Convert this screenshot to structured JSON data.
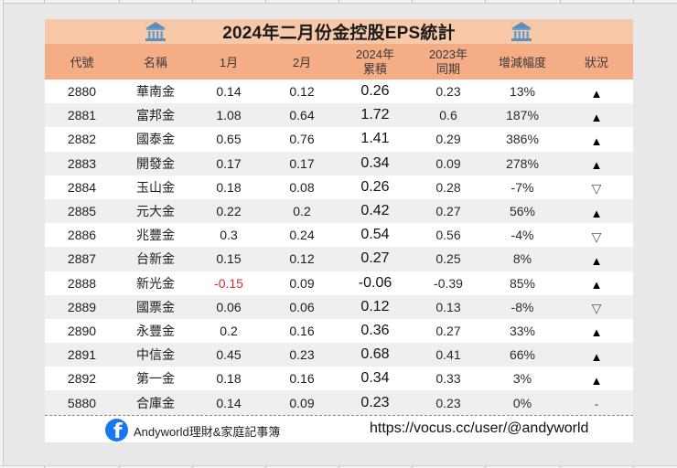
{
  "title": "2024年二月份金控股EPS統計",
  "icons": {
    "title_left": "bank-building-icon",
    "title_right": "bank-building-icon",
    "footer": "facebook-icon"
  },
  "colors": {
    "title_bg": "#f8c9a8",
    "header_bg": "#f4ad84",
    "negative": "#d0312d",
    "facebook": "#1877f2"
  },
  "columns": {
    "code": "代號",
    "name": "名稱",
    "jan": "1月",
    "feb": "2月",
    "cum2024_l1": "2024年",
    "cum2024_l2": "累積",
    "same2023_l1": "2023年",
    "same2023_l2": "同期",
    "change": "增減幅度",
    "status": "狀況"
  },
  "rows": [
    {
      "code": "2880",
      "name": "華南金",
      "jan": "0.14",
      "feb": "0.12",
      "cum2024": "0.26",
      "same2023": "0.23",
      "change": "13%",
      "status": "▲"
    },
    {
      "code": "2881",
      "name": "富邦金",
      "jan": "1.08",
      "feb": "0.64",
      "cum2024": "1.72",
      "same2023": "0.6",
      "change": "187%",
      "status": "▲"
    },
    {
      "code": "2882",
      "name": "國泰金",
      "jan": "0.65",
      "feb": "0.76",
      "cum2024": "1.41",
      "same2023": "0.29",
      "change": "386%",
      "status": "▲"
    },
    {
      "code": "2883",
      "name": "開發金",
      "jan": "0.17",
      "feb": "0.17",
      "cum2024": "0.34",
      "same2023": "0.09",
      "change": "278%",
      "status": "▲"
    },
    {
      "code": "2884",
      "name": "玉山金",
      "jan": "0.18",
      "feb": "0.08",
      "cum2024": "0.26",
      "same2023": "0.28",
      "change": "-7%",
      "status": "▽"
    },
    {
      "code": "2885",
      "name": "元大金",
      "jan": "0.22",
      "feb": "0.2",
      "cum2024": "0.42",
      "same2023": "0.27",
      "change": "56%",
      "status": "▲"
    },
    {
      "code": "2886",
      "name": "兆豐金",
      "jan": "0.3",
      "feb": "0.24",
      "cum2024": "0.54",
      "same2023": "0.56",
      "change": "-4%",
      "status": "▽"
    },
    {
      "code": "2887",
      "name": "台新金",
      "jan": "0.15",
      "feb": "0.12",
      "cum2024": "0.27",
      "same2023": "0.25",
      "change": "8%",
      "status": "▲"
    },
    {
      "code": "2888",
      "name": "新光金",
      "jan": "-0.15",
      "feb": "0.09",
      "cum2024": "-0.06",
      "same2023": "-0.39",
      "change": "85%",
      "status": "▲"
    },
    {
      "code": "2889",
      "name": "國票金",
      "jan": "0.06",
      "feb": "0.06",
      "cum2024": "0.12",
      "same2023": "0.13",
      "change": "-8%",
      "status": "▽"
    },
    {
      "code": "2890",
      "name": "永豐金",
      "jan": "0.2",
      "feb": "0.16",
      "cum2024": "0.36",
      "same2023": "0.27",
      "change": "33%",
      "status": "▲"
    },
    {
      "code": "2891",
      "name": "中信金",
      "jan": "0.45",
      "feb": "0.23",
      "cum2024": "0.68",
      "same2023": "0.41",
      "change": "66%",
      "status": "▲"
    },
    {
      "code": "2892",
      "name": "第一金",
      "jan": "0.18",
      "feb": "0.16",
      "cum2024": "0.34",
      "same2023": "0.33",
      "change": "3%",
      "status": "▲"
    },
    {
      "code": "5880",
      "name": "合庫金",
      "jan": "0.14",
      "feb": "0.09",
      "cum2024": "0.23",
      "same2023": "0.23",
      "change": "0%",
      "status": "-"
    }
  ],
  "footer": {
    "page_name": "Andyworld理財&家庭記事簿",
    "url": "https://vocus.cc/user/@andyworld"
  }
}
